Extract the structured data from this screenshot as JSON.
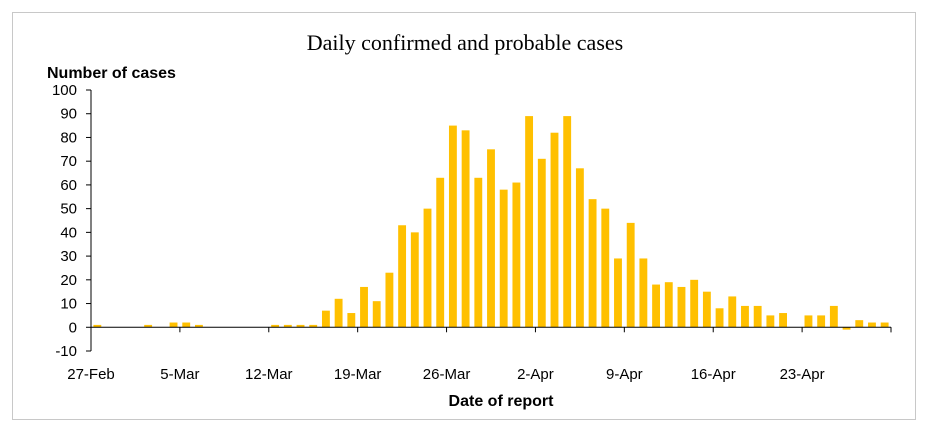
{
  "chart_data": {
    "type": "bar",
    "title": "Daily confirmed and probable cases",
    "ylabel": "Number of cases",
    "xlabel": "Date of report",
    "ylim": [
      -10,
      100
    ],
    "y_ticks": [
      "-10",
      "0",
      "10",
      "20",
      "30",
      "40",
      "50",
      "60",
      "70",
      "80",
      "90",
      "100"
    ],
    "x_tick_labels": [
      "27-Feb",
      "5-Mar",
      "12-Mar",
      "19-Mar",
      "26-Mar",
      "2-Apr",
      "9-Apr",
      "16-Apr",
      "23-Apr"
    ],
    "grid": false,
    "bar_color": "#FFC000",
    "values": [
      1,
      0,
      0,
      0,
      1,
      0,
      2,
      2,
      1,
      0,
      0,
      0,
      0,
      0,
      1,
      1,
      1,
      1,
      7,
      12,
      6,
      17,
      11,
      23,
      43,
      40,
      50,
      63,
      85,
      83,
      63,
      75,
      58,
      61,
      89,
      71,
      82,
      89,
      67,
      54,
      50,
      29,
      44,
      29,
      18,
      19,
      17,
      20,
      15,
      8,
      13,
      9,
      9,
      5,
      6,
      0,
      5,
      5,
      9,
      -1,
      3,
      2,
      2
    ]
  }
}
